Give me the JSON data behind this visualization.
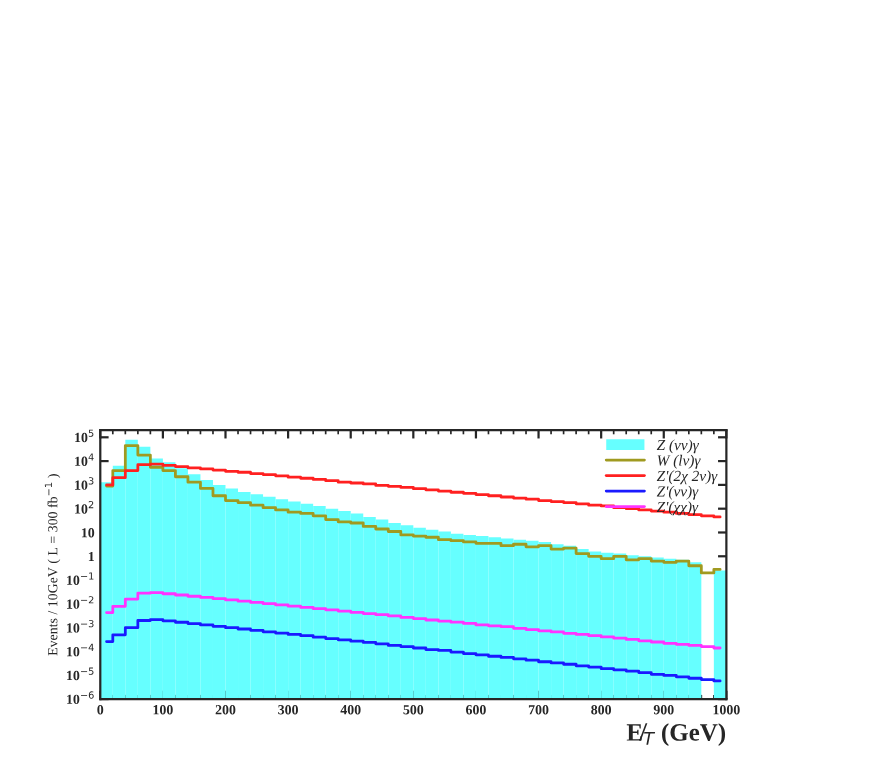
{
  "chart_data": {
    "type": "histogram",
    "xlabel": "E̸$_{T}$ (GeV)",
    "ylabel": "Events / 10GeV ( L = 300 fb$^{−1}$ )",
    "bins": [
      0,
      20,
      40,
      60,
      80,
      100,
      120,
      140,
      160,
      180,
      200,
      220,
      240,
      260,
      280,
      300,
      320,
      340,
      360,
      380,
      400,
      420,
      440,
      460,
      480,
      500,
      520,
      540,
      560,
      580,
      600,
      620,
      640,
      660,
      680,
      700,
      720,
      740,
      760,
      780,
      800,
      820,
      840,
      860,
      880,
      900,
      920,
      940,
      960,
      980,
      1000
    ],
    "series": [
      {
        "name": "Z (νν)γ",
        "color": "#66ffff",
        "values": [
          1300,
          6300,
          79000,
          40000,
          13000,
          8900,
          5000,
          2800,
          1600,
          1000,
          710,
          500,
          400,
          320,
          250,
          200,
          160,
          130,
          100,
          79,
          63,
          45,
          35,
          25,
          20,
          16,
          13,
          11,
          8.9,
          7.9,
          7.1,
          6.3,
          5.6,
          5.0,
          4.5,
          4.0,
          3.2,
          2.8,
          2.0,
          1.6,
          1.4,
          1.3,
          1.1,
          1.0,
          0.89,
          0.79,
          0.71,
          0.56,
          null,
          0.25
        ]
      },
      {
        "name": "W (lν)γ",
        "type": "step",
        "color": "#a09a20",
        "x": [
          10,
          30,
          50,
          70,
          90,
          110,
          130,
          150,
          170,
          190,
          210,
          230,
          250,
          270,
          290,
          310,
          330,
          350,
          370,
          390,
          410,
          430,
          450,
          470,
          490,
          510,
          530,
          550,
          570,
          590,
          610,
          630,
          650,
          670,
          690,
          710,
          730,
          750,
          770,
          790,
          810,
          830,
          850,
          870,
          890,
          910,
          930,
          950,
          970,
          990
        ],
        "values": [
          890,
          4000,
          45000,
          18000,
          5500,
          4000,
          2200,
          1300,
          710,
          350,
          220,
          180,
          140,
          110,
          89,
          71,
          63,
          50,
          35,
          28,
          25,
          18,
          14,
          11,
          7.9,
          7.1,
          6.3,
          5.0,
          4.5,
          4.0,
          3.5,
          3.5,
          2.8,
          3.2,
          2.5,
          2.8,
          2.0,
          2.2,
          1.3,
          1.0,
          0.79,
          1.0,
          0.71,
          0.79,
          0.63,
          0.56,
          0.63,
          0.4,
          0.2,
          0.28
        ]
      },
      {
        "name": "Z'(2χ 2ν)γ",
        "type": "step",
        "color": "#ff2020",
        "x": [
          10,
          30,
          50,
          70,
          90,
          110,
          130,
          150,
          170,
          190,
          210,
          230,
          250,
          270,
          290,
          310,
          330,
          350,
          370,
          390,
          410,
          430,
          450,
          470,
          490,
          510,
          530,
          550,
          570,
          590,
          610,
          630,
          650,
          670,
          690,
          710,
          730,
          750,
          770,
          790,
          810,
          830,
          850,
          870,
          890,
          910,
          930,
          950,
          970,
          990
        ],
        "values": [
          1000,
          2000,
          4000,
          7100,
          7400,
          6600,
          5900,
          5200,
          4700,
          4200,
          3700,
          3400,
          3000,
          2700,
          2400,
          2100,
          1900,
          1700,
          1500,
          1300,
          1200,
          1100,
          950,
          870,
          780,
          690,
          620,
          550,
          490,
          440,
          390,
          350,
          310,
          280,
          250,
          220,
          200,
          180,
          160,
          140,
          130,
          110,
          100,
          89,
          79,
          71,
          63,
          56,
          50,
          45
        ]
      },
      {
        "name": "Z'(νν)γ",
        "type": "step",
        "color": "#1a1aff",
        "x": [
          10,
          30,
          50,
          70,
          90,
          110,
          130,
          150,
          170,
          190,
          210,
          230,
          250,
          270,
          290,
          310,
          330,
          350,
          370,
          390,
          410,
          430,
          450,
          470,
          490,
          510,
          530,
          550,
          570,
          590,
          610,
          630,
          650,
          670,
          690,
          710,
          730,
          750,
          770,
          790,
          810,
          830,
          850,
          870,
          890,
          910,
          930,
          950,
          970,
          990
        ],
        "values": [
          0.00026,
          0.0005,
          0.001,
          0.002,
          0.0022,
          0.00193,
          0.00169,
          0.00148,
          0.0013,
          0.00114,
          0.001,
          0.00088,
          0.00077,
          0.00067,
          0.00059,
          0.00052,
          0.00046,
          0.0004,
          0.00035,
          0.00031,
          0.00027,
          0.00024,
          0.00021,
          0.00018,
          0.00016,
          0.00014,
          0.00012,
          0.00011,
          9.4e-05,
          8.2e-05,
          7.2e-05,
          6.3e-05,
          5.6e-05,
          4.9e-05,
          4.3e-05,
          3.7e-05,
          3.3e-05,
          2.9e-05,
          2.5e-05,
          2.2e-05,
          1.9e-05,
          1.7e-05,
          1.5e-05,
          1.3e-05,
          1.1e-05,
          9.8e-06,
          8.6e-06,
          7.5e-06,
          6.6e-06,
          5.8e-06
        ]
      },
      {
        "name": "Z'(χχ)γ",
        "type": "step",
        "color": "#ff33ff",
        "x": [
          10,
          30,
          50,
          70,
          90,
          110,
          130,
          150,
          170,
          190,
          210,
          230,
          250,
          270,
          290,
          310,
          330,
          350,
          370,
          390,
          410,
          430,
          450,
          470,
          490,
          510,
          530,
          550,
          570,
          590,
          610,
          630,
          650,
          670,
          690,
          710,
          730,
          750,
          770,
          790,
          810,
          830,
          850,
          870,
          890,
          910,
          930,
          950,
          970,
          990
        ],
        "values": [
          0.0043,
          0.0079,
          0.016,
          0.028,
          0.03,
          0.0266,
          0.0236,
          0.0209,
          0.0186,
          0.0165,
          0.0146,
          0.013,
          0.0115,
          0.0102,
          0.009,
          0.008,
          0.0071,
          0.0063,
          0.0056,
          0.005,
          0.0044,
          0.0039,
          0.0035,
          0.0031,
          0.0027,
          0.0024,
          0.0021,
          0.0019,
          0.0017,
          0.0015,
          0.0013,
          0.0012,
          0.0011,
          0.00094,
          0.00083,
          0.00074,
          0.00066,
          0.00058,
          0.00052,
          0.00046,
          0.00041,
          0.00036,
          0.00032,
          0.00028,
          0.00025,
          0.00022,
          0.0002,
          0.00018,
          0.00016,
          0.00014
        ]
      }
    ],
    "log": true,
    "xlim": [
      0,
      1000
    ],
    "xticks": [
      0,
      100,
      200,
      300,
      400,
      500,
      600,
      700,
      800,
      900,
      1000
    ],
    "ylim": [
      1e-06,
      200000.0
    ],
    "yticks": [
      {
        "value": 1e-06,
        "label": "10$^{−6}$"
      },
      {
        "value": 1e-05,
        "label": "10$^{−5}$"
      },
      {
        "value": 0.0001,
        "label": "10$^{−4}$"
      },
      {
        "value": 0.001,
        "label": "10$^{−3}$"
      },
      {
        "value": 0.01,
        "label": "10$^{−2}$"
      },
      {
        "value": 0.1,
        "label": "10$^{−1}$"
      },
      {
        "value": 1,
        "label": "1"
      },
      {
        "value": 10,
        "label": "10"
      },
      {
        "value": 100,
        "label": "10$^{2}$"
      },
      {
        "value": 1000,
        "label": "10$^{3}$"
      },
      {
        "value": 10000,
        "label": "10$^{4}$"
      },
      {
        "value": 100000,
        "label": "10$^{5}$"
      }
    ],
    "legend": "top right"
  }
}
